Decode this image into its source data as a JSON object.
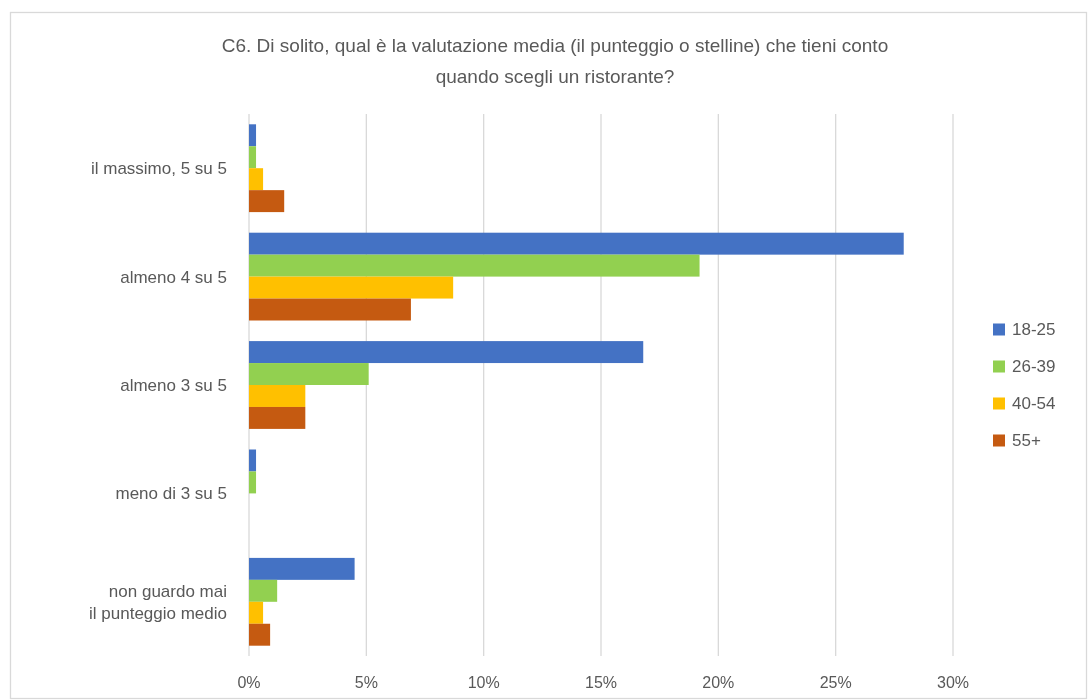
{
  "chart_data": {
    "type": "bar",
    "orientation": "horizontal",
    "title": "C6. Di solito, qual è la valutazione media (il punteggio o stelline) che tieni conto quando scegli un ristorante?",
    "categories": [
      "il massimo, 5 su 5",
      "almeno 4 su 5",
      "almeno 3 su 5",
      "meno di 3 su 5",
      "non guardo mai il punteggio medio"
    ],
    "series": [
      {
        "name": "18-25",
        "color": "#4472c4",
        "values": [
          0.3,
          27.9,
          16.8,
          0.3,
          4.5
        ]
      },
      {
        "name": "26-39",
        "color": "#92d050",
        "values": [
          0.3,
          19.2,
          5.1,
          0.3,
          1.2
        ]
      },
      {
        "name": "40-54",
        "color": "#ffc000",
        "values": [
          0.6,
          8.7,
          2.4,
          0,
          0.6
        ]
      },
      {
        "name": "55+",
        "color": "#c55a11",
        "values": [
          1.5,
          6.9,
          2.4,
          0,
          0.9
        ]
      }
    ],
    "xlim": [
      0,
      30
    ],
    "xticks": [
      {
        "value": 0,
        "label": "0%"
      },
      {
        "value": 5,
        "label": "5%"
      },
      {
        "value": 10,
        "label": "10%"
      },
      {
        "value": 15,
        "label": "15%"
      },
      {
        "value": 20,
        "label": "20%"
      },
      {
        "value": 25,
        "label": "25%"
      },
      {
        "value": 30,
        "label": "30%"
      }
    ],
    "grid": "x",
    "legend": "right"
  }
}
